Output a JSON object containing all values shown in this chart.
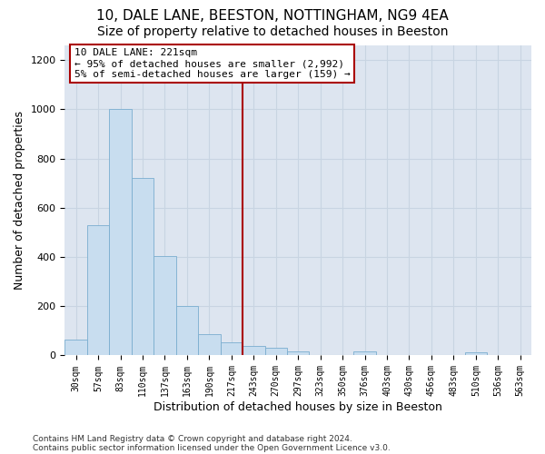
{
  "title1": "10, DALE LANE, BEESTON, NOTTINGHAM, NG9 4EA",
  "title2": "Size of property relative to detached houses in Beeston",
  "xlabel": "Distribution of detached houses by size in Beeston",
  "ylabel": "Number of detached properties",
  "footer1": "Contains HM Land Registry data © Crown copyright and database right 2024.",
  "footer2": "Contains public sector information licensed under the Open Government Licence v3.0.",
  "annotation_title": "10 DALE LANE: 221sqm",
  "annotation_line1": "← 95% of detached houses are smaller (2,992)",
  "annotation_line2": "5% of semi-detached houses are larger (159) →",
  "bar_color": "#c8ddef",
  "bar_edge_color": "#7aadcf",
  "vline_color": "#aa0000",
  "vline_x_idx": 7,
  "categories": [
    "30sqm",
    "57sqm",
    "83sqm",
    "110sqm",
    "137sqm",
    "163sqm",
    "190sqm",
    "217sqm",
    "243sqm",
    "270sqm",
    "297sqm",
    "323sqm",
    "350sqm",
    "376sqm",
    "403sqm",
    "430sqm",
    "456sqm",
    "483sqm",
    "510sqm",
    "536sqm",
    "563sqm"
  ],
  "values": [
    65,
    530,
    1000,
    720,
    405,
    200,
    85,
    55,
    38,
    30,
    17,
    0,
    0,
    17,
    0,
    0,
    0,
    0,
    12,
    0,
    0
  ],
  "ylim_max": 1260,
  "yticks": [
    0,
    200,
    400,
    600,
    800,
    1000,
    1200
  ],
  "grid_color": "#c8d4e2",
  "bg_color": "#dde5f0",
  "title1_fontsize": 11,
  "title2_fontsize": 10,
  "annotation_fontsize": 8,
  "tick_fontsize": 7,
  "ylabel_fontsize": 9,
  "xlabel_fontsize": 9,
  "footer_fontsize": 6.5
}
